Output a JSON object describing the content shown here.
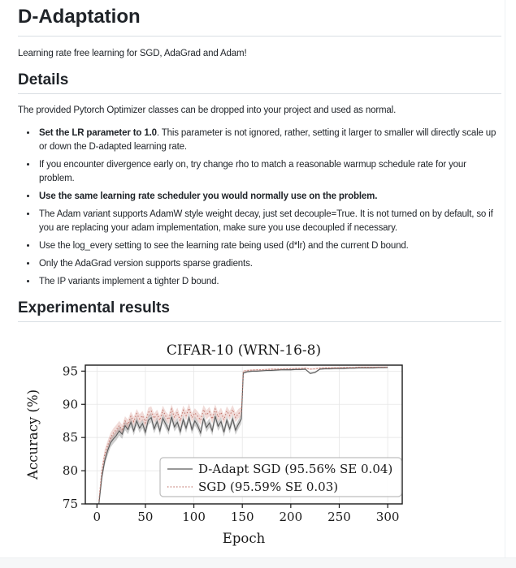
{
  "page": {
    "title": "D-Adaptation",
    "tagline": "Learning rate free learning for SGD, AdaGrad and Adam!",
    "details_heading": "Details",
    "details_intro": "The provided Pytorch Optimizer classes can be dropped into your project and used as normal.",
    "bullets": [
      {
        "bold": "Set the LR parameter to 1.0",
        "rest": ". This parameter is not ignored, rather, setting it larger to smaller will directly scale up or down the D-adapted learning rate."
      },
      {
        "bold": "",
        "rest": "If you encounter divergence early on, try change rho to match a reasonable warmup schedule rate for your problem."
      },
      {
        "bold": "Use the same learning rate scheduler you would normally use on the problem.",
        "rest": ""
      },
      {
        "bold": "",
        "rest": "The Adam variant supports AdamW style weight decay, just set decouple=True. It is not turned on by default, so if you are replacing your adam implementation, make sure you use decoupled if necessary."
      },
      {
        "bold": "",
        "rest": "Use the log_every setting to see the learning rate being used (d*lr) and the current D bound."
      },
      {
        "bold": "",
        "rest": "Only the AdaGrad version supports sparse gradients."
      },
      {
        "bold": "",
        "rest": "The IP variants implement a tighter D bound."
      }
    ],
    "results_heading": "Experimental results"
  },
  "colors": {
    "text": "#1f2328",
    "rule": "#d9dee3",
    "spine": "#1a1a1a",
    "grid": "#e6e6e6",
    "dadapt_line": "#5a5a5a",
    "dadapt_band": "rgba(105,105,105,0.32)",
    "sgd_line": "#c0766c",
    "sgd_band": "rgba(205,127,116,0.28)",
    "legend_border": "#bdbdbd",
    "legend_fill": "rgba(255,255,255,0.9)"
  },
  "chart_data": {
    "type": "line",
    "title": "CIFAR-10 (WRN-16-8)",
    "xlabel": "Epoch",
    "ylabel": "Accuracy (%)",
    "xlim": [
      -12,
      315
    ],
    "ylim": [
      75,
      95.9
    ],
    "xticks": [
      0,
      50,
      100,
      150,
      200,
      250,
      300
    ],
    "yticks": [
      75,
      80,
      85,
      90,
      95
    ],
    "grid": true,
    "legend_position": "lower right",
    "band_split_epoch": 150,
    "x": [
      2,
      5,
      8,
      11,
      14,
      17,
      20,
      23,
      26,
      29,
      32,
      35,
      38,
      41,
      44,
      47,
      50,
      53,
      56,
      59,
      62,
      65,
      68,
      71,
      74,
      77,
      80,
      83,
      86,
      89,
      92,
      95,
      98,
      101,
      104,
      107,
      110,
      113,
      116,
      119,
      122,
      125,
      128,
      131,
      134,
      137,
      140,
      143,
      146,
      149,
      151,
      155,
      160,
      165,
      170,
      175,
      180,
      185,
      190,
      195,
      200,
      205,
      210,
      215,
      220,
      225,
      230,
      235,
      240,
      245,
      250,
      255,
      260,
      265,
      270,
      275,
      280,
      285,
      290,
      295,
      300
    ],
    "series": [
      {
        "name": "D-Adapt SGD (95.56% SE 0.04)",
        "style": "solid",
        "color_key": "dadapt_line",
        "band_color_key": "dadapt_band",
        "band_pre": 0.7,
        "band_post": 0.12,
        "y": [
          75.0,
          79.0,
          81.5,
          83.0,
          84.2,
          84.8,
          85.3,
          86.0,
          85.5,
          86.8,
          86.2,
          87.3,
          86.0,
          87.5,
          86.4,
          87.1,
          85.8,
          87.6,
          88.0,
          86.3,
          87.4,
          86.0,
          87.9,
          87.0,
          86.1,
          88.1,
          86.6,
          87.3,
          85.9,
          87.7,
          86.4,
          88.0,
          86.2,
          87.5,
          86.8,
          85.7,
          87.9,
          86.5,
          87.2,
          86.0,
          88.2,
          86.7,
          87.4,
          85.8,
          87.6,
          86.3,
          87.8,
          86.1,
          87.0,
          87.8,
          94.7,
          94.9,
          95.0,
          95.0,
          95.05,
          95.1,
          95.1,
          95.15,
          95.2,
          95.2,
          95.2,
          95.25,
          95.25,
          95.3,
          94.65,
          94.8,
          95.3,
          95.35,
          95.35,
          95.4,
          95.4,
          95.4,
          95.45,
          95.45,
          95.5,
          95.5,
          95.5,
          95.5,
          95.55,
          95.55,
          95.56
        ]
      },
      {
        "name": "SGD (95.59% SE 0.03)",
        "style": "dotted",
        "color_key": "sgd_line",
        "band_color_key": "sgd_band",
        "band_pre": 0.7,
        "band_post": 0.12,
        "y": [
          75.5,
          80.0,
          82.5,
          83.8,
          85.0,
          85.7,
          86.2,
          86.8,
          86.2,
          87.5,
          87.0,
          88.2,
          87.4,
          88.6,
          87.8,
          88.3,
          87.2,
          88.8,
          89.0,
          87.9,
          88.5,
          87.6,
          89.1,
          88.2,
          87.7,
          89.3,
          88.0,
          88.8,
          87.5,
          89.1,
          88.3,
          89.4,
          88.0,
          88.7,
          88.2,
          87.6,
          89.2,
          88.4,
          88.9,
          87.8,
          89.3,
          88.1,
          88.8,
          87.7,
          89.0,
          88.3,
          89.2,
          88.0,
          88.6,
          88.9,
          95.0,
          95.1,
          95.15,
          95.2,
          95.2,
          95.25,
          95.3,
          95.3,
          95.3,
          95.35,
          95.35,
          95.4,
          95.4,
          95.45,
          95.3,
          95.35,
          95.45,
          95.5,
          95.5,
          95.5,
          95.5,
          95.55,
          95.55,
          95.55,
          95.6,
          95.6,
          95.6,
          95.6,
          95.6,
          95.6,
          95.59
        ]
      }
    ]
  }
}
